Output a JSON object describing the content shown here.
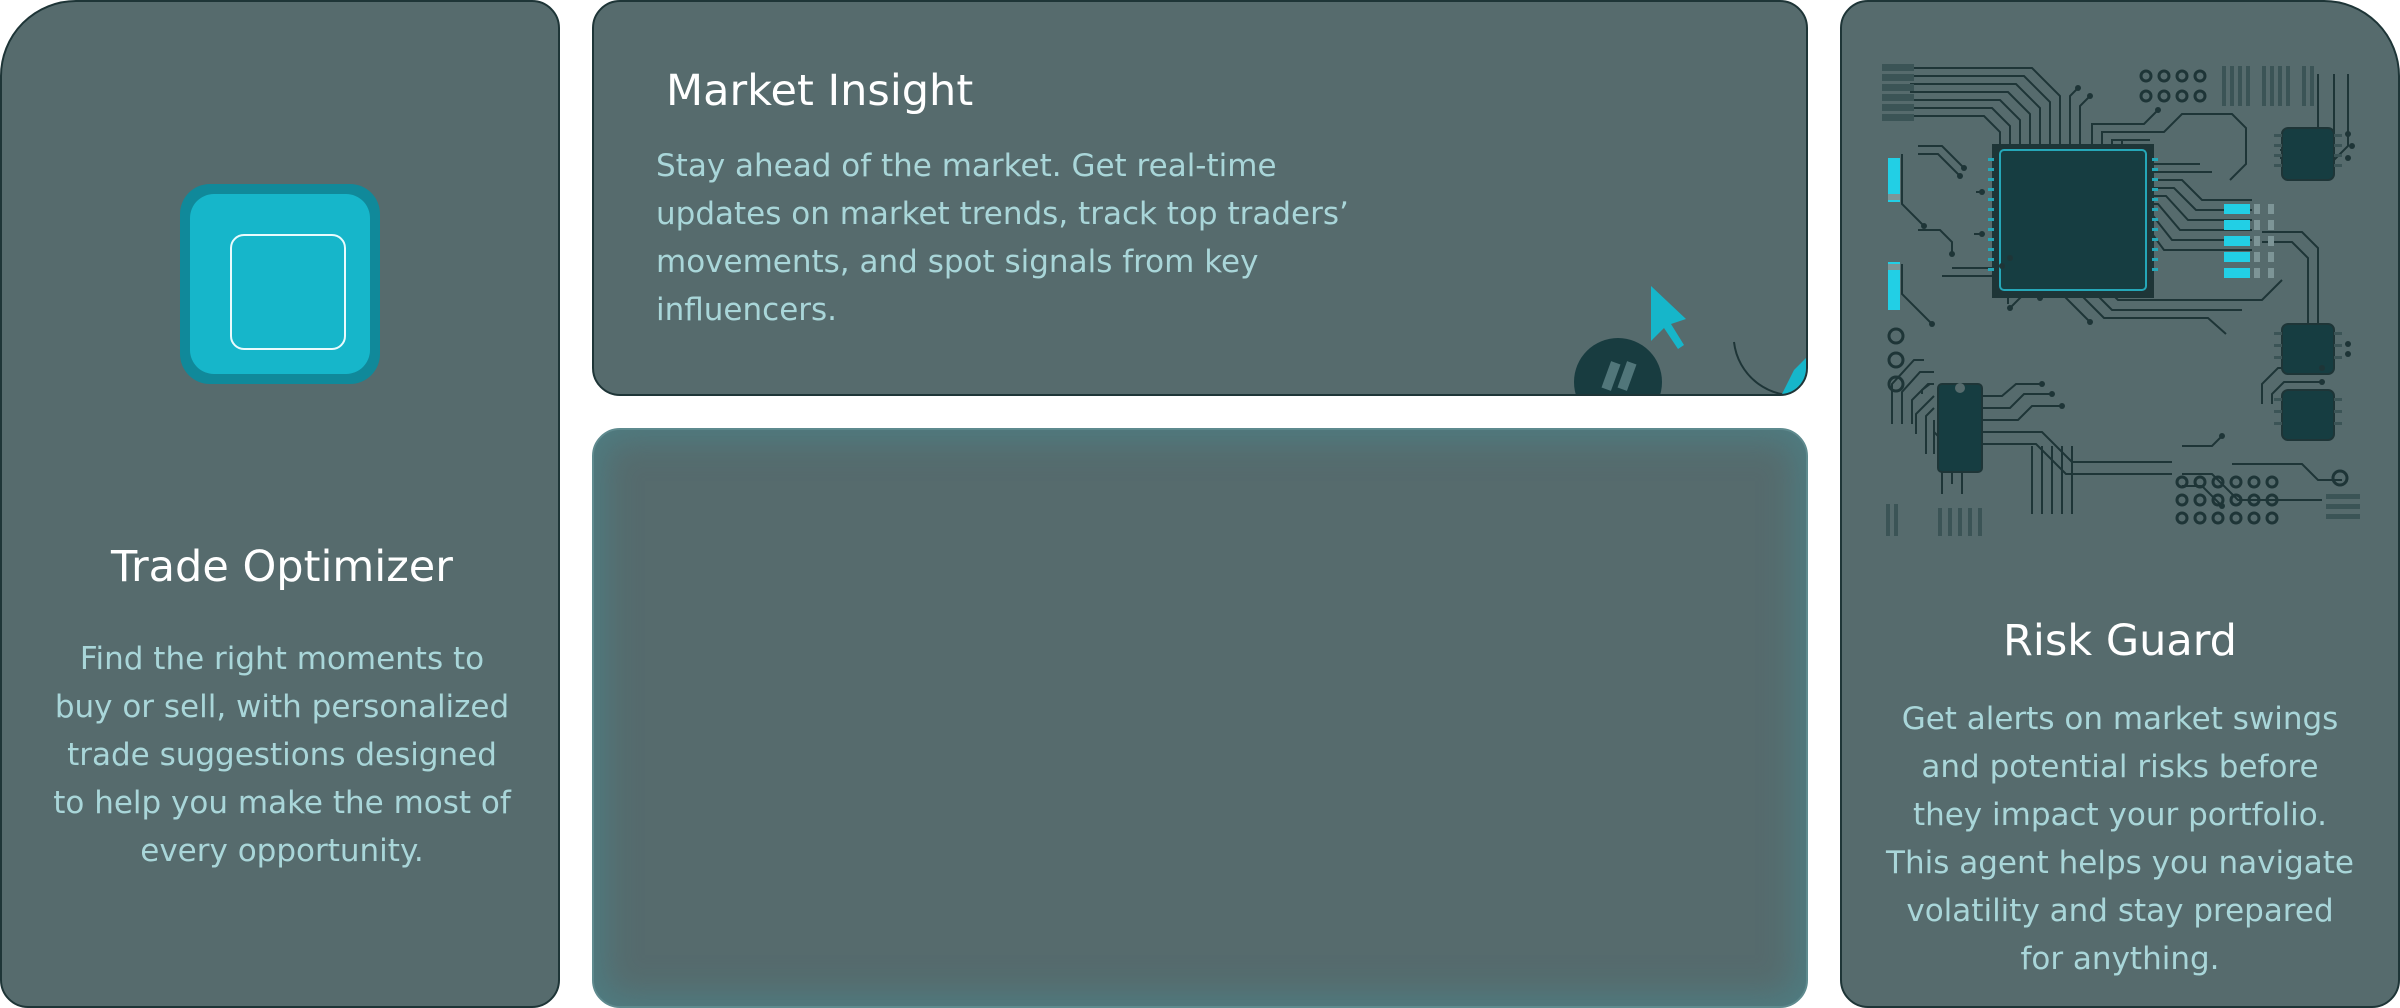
{
  "cards": {
    "trade_optimizer": {
      "title": "Trade Optimizer",
      "description": "Find the right moments to buy or sell, with personalized trade suggestions designed to help you make the most of every opportunity.",
      "icon": "square-frame-icon"
    },
    "market_insight": {
      "title": "Market Insight",
      "description": "Stay ahead of the market. Get real-time updates on market trends, track top traders’ movements, and spot signals from key influencers.",
      "icon": "cursor-arrow-icon"
    },
    "empty_panel": {},
    "risk_guard": {
      "title": "Risk Guard",
      "description": "Get alerts on market swings and potential risks before they impact your portfolio. This agent helps you navigate volatility and stay prepared for anything.",
      "icon": "circuit-board-icon"
    }
  },
  "colors": {
    "card_bg": "#566b6d",
    "card_border": "#1e3537",
    "title": "#ffffff",
    "body": "#a9d6d9",
    "accent": "#16b6ca",
    "chip": "#163d41"
  }
}
